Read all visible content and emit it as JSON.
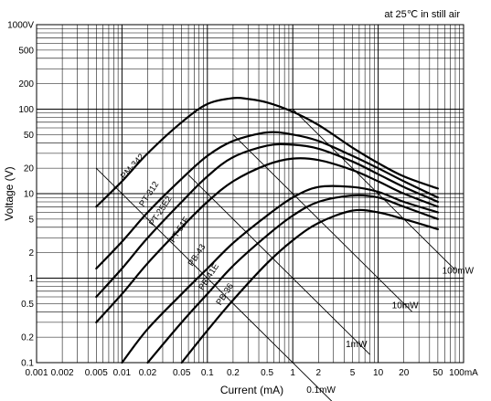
{
  "chart_data": {
    "type": "line",
    "note": "at 25℃ in still air",
    "xlabel": "Current (mA)",
    "ylabel": "Voltage (V)",
    "xscale": "log",
    "yscale": "log",
    "xlim": [
      0.001,
      100
    ],
    "ylim": [
      0.1,
      1000
    ],
    "x_ticks": [
      {
        "v": 0.001,
        "label": "0.001"
      },
      {
        "v": 0.002,
        "label": "0.002"
      },
      {
        "v": 0.005,
        "label": "0.005"
      },
      {
        "v": 0.01,
        "label": "0.01"
      },
      {
        "v": 0.02,
        "label": "0.02"
      },
      {
        "v": 0.05,
        "label": "0.05"
      },
      {
        "v": 0.1,
        "label": "0.1"
      },
      {
        "v": 0.2,
        "label": "0.2"
      },
      {
        "v": 0.5,
        "label": "0.5"
      },
      {
        "v": 1,
        "label": "1"
      },
      {
        "v": 2,
        "label": "2"
      },
      {
        "v": 5,
        "label": "5"
      },
      {
        "v": 10,
        "label": "10"
      },
      {
        "v": 20,
        "label": "20"
      },
      {
        "v": 50,
        "label": "50"
      },
      {
        "v": 100,
        "label": "100mA"
      }
    ],
    "y_ticks": [
      {
        "v": 0.1,
        "label": "0.1"
      },
      {
        "v": 0.2,
        "label": "0.2"
      },
      {
        "v": 0.5,
        "label": "0.5"
      },
      {
        "v": 1,
        "label": "1"
      },
      {
        "v": 2,
        "label": "2"
      },
      {
        "v": 5,
        "label": "5"
      },
      {
        "v": 10,
        "label": "10"
      },
      {
        "v": 20,
        "label": "20"
      },
      {
        "v": 50,
        "label": "50"
      },
      {
        "v": 100,
        "label": "100"
      },
      {
        "v": 200,
        "label": "200"
      },
      {
        "v": 500,
        "label": "500"
      },
      {
        "v": 1000,
        "label": "1000V"
      }
    ],
    "grid": true,
    "series": [
      {
        "name": "PM-342",
        "points": [
          [
            0.005,
            7
          ],
          [
            0.01,
            14
          ],
          [
            0.02,
            30
          ],
          [
            0.05,
            70
          ],
          [
            0.1,
            115
          ],
          [
            0.2,
            135
          ],
          [
            0.3,
            132
          ],
          [
            0.5,
            120
          ],
          [
            1,
            93
          ],
          [
            2,
            65
          ],
          [
            5,
            35
          ],
          [
            10,
            23
          ],
          [
            20,
            16
          ],
          [
            50,
            11.5
          ]
        ]
      },
      {
        "name": "PT-312",
        "points": [
          [
            0.005,
            1.3
          ],
          [
            0.01,
            2.7
          ],
          [
            0.02,
            6
          ],
          [
            0.05,
            15
          ],
          [
            0.1,
            28
          ],
          [
            0.2,
            42
          ],
          [
            0.5,
            53
          ],
          [
            1,
            50
          ],
          [
            2,
            42
          ],
          [
            5,
            28
          ],
          [
            10,
            20
          ],
          [
            20,
            14
          ],
          [
            50,
            9
          ]
        ]
      },
      {
        "name": "PT-25E2",
        "points": [
          [
            0.005,
            0.6
          ],
          [
            0.01,
            1.3
          ],
          [
            0.02,
            3
          ],
          [
            0.05,
            8
          ],
          [
            0.1,
            16
          ],
          [
            0.2,
            27
          ],
          [
            0.5,
            37
          ],
          [
            1,
            38
          ],
          [
            2,
            34
          ],
          [
            5,
            24
          ],
          [
            10,
            17
          ],
          [
            20,
            12
          ],
          [
            50,
            8
          ]
        ]
      },
      {
        "name": "PT-51F",
        "points": [
          [
            0.005,
            0.3
          ],
          [
            0.01,
            0.65
          ],
          [
            0.02,
            1.5
          ],
          [
            0.05,
            4
          ],
          [
            0.1,
            8
          ],
          [
            0.2,
            14
          ],
          [
            0.5,
            22
          ],
          [
            1,
            26
          ],
          [
            2,
            25
          ],
          [
            5,
            19
          ],
          [
            10,
            14
          ],
          [
            20,
            10
          ],
          [
            50,
            7
          ]
        ]
      },
      {
        "name": "PB-43",
        "points": [
          [
            0.01,
            0.1
          ],
          [
            0.02,
            0.25
          ],
          [
            0.05,
            0.65
          ],
          [
            0.1,
            1.3
          ],
          [
            0.2,
            2.6
          ],
          [
            0.5,
            5.5
          ],
          [
            1,
            9
          ],
          [
            2,
            12
          ],
          [
            5,
            12
          ],
          [
            10,
            10.5
          ],
          [
            20,
            8
          ],
          [
            50,
            6
          ]
        ]
      },
      {
        "name": "PB-41E",
        "points": [
          [
            0.02,
            0.1
          ],
          [
            0.05,
            0.3
          ],
          [
            0.1,
            0.65
          ],
          [
            0.2,
            1.4
          ],
          [
            0.5,
            3.2
          ],
          [
            1,
            5.5
          ],
          [
            2,
            8
          ],
          [
            5,
            9.5
          ],
          [
            10,
            9
          ],
          [
            20,
            7
          ],
          [
            50,
            5
          ]
        ]
      },
      {
        "name": "PB-36",
        "points": [
          [
            0.05,
            0.1
          ],
          [
            0.1,
            0.24
          ],
          [
            0.2,
            0.55
          ],
          [
            0.5,
            1.5
          ],
          [
            1,
            2.8
          ],
          [
            2,
            4.5
          ],
          [
            5,
            6.3
          ],
          [
            10,
            6
          ],
          [
            20,
            5
          ],
          [
            50,
            3.8
          ]
        ]
      }
    ],
    "power_lines": [
      {
        "label": "100mW",
        "mw": 100
      },
      {
        "label": "10mW",
        "mw": 10
      },
      {
        "label": "1mW",
        "mw": 1
      },
      {
        "label": "0.1mW",
        "mw": 0.1
      }
    ]
  }
}
